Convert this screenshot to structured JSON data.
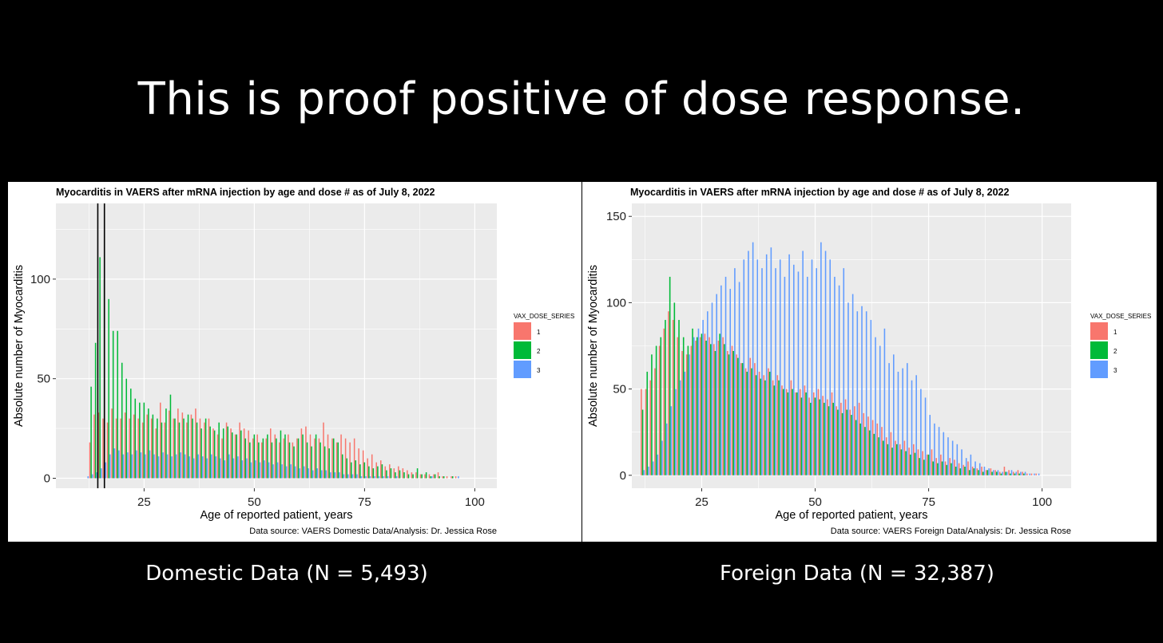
{
  "slide": {
    "title": "This is proof positive of dose response.",
    "captions": [
      "Domestic Data (N = 5,493)",
      "Foreign Data (N = 32,387)"
    ]
  },
  "colors": {
    "dose1": "#F8766D",
    "dose2": "#00BA38",
    "dose3": "#619CFF",
    "panel_bg": "#EBEBEB"
  },
  "chart_data": [
    {
      "type": "bar",
      "title": "Myocarditis in VAERS after mRNA injection by age and dose # as of July 8, 2022",
      "xlabel": "Age of reported patient, years",
      "ylabel": "Absolute number of Myocarditis",
      "source": "Data source: VAERS Domestic Data/Analysis: Dr. Jessica Rose",
      "xlim": [
        5,
        105
      ],
      "ylim": [
        -5,
        138
      ],
      "x_ticks": [
        25,
        50,
        75,
        100
      ],
      "y_ticks": [
        0,
        50,
        100
      ],
      "grid": true,
      "legend": {
        "title": "VAX_DOSE_SERIES",
        "placement": "right",
        "entries": [
          "1",
          "2",
          "3"
        ]
      },
      "reference_lines_x": [
        14.5,
        16
      ],
      "x": [
        12,
        13,
        14,
        15,
        16,
        17,
        18,
        19,
        20,
        21,
        22,
        23,
        24,
        25,
        26,
        27,
        28,
        29,
        30,
        31,
        32,
        33,
        34,
        35,
        36,
        37,
        38,
        39,
        40,
        41,
        42,
        43,
        44,
        45,
        46,
        47,
        48,
        49,
        50,
        51,
        52,
        53,
        54,
        55,
        56,
        57,
        58,
        59,
        60,
        61,
        62,
        63,
        64,
        65,
        66,
        67,
        68,
        69,
        70,
        71,
        72,
        73,
        74,
        75,
        76,
        77,
        78,
        79,
        80,
        81,
        82,
        83,
        84,
        85,
        86,
        87,
        88,
        89,
        90,
        91,
        92,
        93,
        94,
        95,
        96,
        97,
        98,
        99,
        100
      ],
      "series": [
        {
          "name": "1",
          "values": [
            0,
            18,
            32,
            33,
            30,
            28,
            35,
            30,
            30,
            33,
            30,
            32,
            30,
            28,
            32,
            30,
            25,
            38,
            28,
            34,
            30,
            35,
            33,
            28,
            32,
            35,
            30,
            28,
            30,
            25,
            22,
            20,
            28,
            25,
            22,
            28,
            25,
            24,
            20,
            22,
            18,
            20,
            25,
            22,
            18,
            20,
            22,
            18,
            20,
            25,
            26,
            22,
            20,
            20,
            28,
            22,
            20,
            18,
            22,
            20,
            18,
            20,
            15,
            14,
            10,
            12,
            8,
            9,
            6,
            7,
            5,
            6,
            5,
            4,
            3,
            3,
            2,
            2,
            2,
            2,
            3,
            1,
            1,
            1,
            1,
            0,
            0,
            0,
            0
          ]
        },
        {
          "name": "2",
          "values": [
            0,
            46,
            68,
            111,
            100,
            90,
            74,
            74,
            58,
            50,
            45,
            40,
            38,
            38,
            35,
            32,
            30,
            28,
            35,
            42,
            30,
            28,
            30,
            32,
            30,
            28,
            25,
            30,
            26,
            24,
            28,
            25,
            26,
            23,
            22,
            24,
            20,
            18,
            22,
            18,
            20,
            22,
            18,
            20,
            24,
            22,
            18,
            16,
            20,
            22,
            18,
            16,
            22,
            18,
            16,
            15,
            20,
            18,
            12,
            10,
            8,
            9,
            7,
            8,
            6,
            5,
            6,
            7,
            4,
            5,
            3,
            4,
            3,
            2,
            2,
            5,
            2,
            3,
            1,
            2,
            1,
            1,
            0,
            1,
            0,
            0,
            0,
            0,
            0
          ]
        },
        {
          "name": "3",
          "values": [
            1,
            2,
            3,
            5,
            8,
            12,
            15,
            14,
            12,
            13,
            12,
            14,
            13,
            12,
            14,
            12,
            11,
            13,
            12,
            11,
            12,
            13,
            12,
            11,
            10,
            12,
            11,
            10,
            12,
            11,
            10,
            9,
            12,
            10,
            11,
            9,
            10,
            8,
            9,
            8,
            9,
            8,
            7,
            8,
            7,
            6,
            7,
            6,
            5,
            6,
            5,
            4,
            5,
            4,
            4,
            3,
            3,
            3,
            2,
            2,
            2,
            2,
            1,
            1,
            1,
            1,
            1,
            1,
            1,
            0,
            1,
            0,
            0,
            0,
            0,
            0,
            0,
            0,
            1,
            0,
            0,
            0,
            0,
            0,
            1,
            0,
            0,
            0,
            0
          ]
        }
      ]
    },
    {
      "type": "bar",
      "title": "Myocarditis in VAERS after mRNA injection by age and dose # as of July 8, 2022",
      "xlabel": "Age of reported patient, years",
      "ylabel": "Absolute number of Myocarditis",
      "source": "Data source: VAERS Foreign Data/Analysis: Dr. Jessica Rose",
      "xlim": [
        9.6,
        106.4
      ],
      "ylim": [
        -7.5,
        157.5
      ],
      "x_ticks": [
        25,
        50,
        75,
        100
      ],
      "y_ticks": [
        0,
        50,
        100,
        150
      ],
      "grid": true,
      "legend": {
        "title": "VAX_DOSE_SERIES",
        "placement": "right",
        "entries": [
          "1",
          "2",
          "3"
        ]
      },
      "x": [
        12,
        13,
        14,
        15,
        16,
        17,
        18,
        19,
        20,
        21,
        22,
        23,
        24,
        25,
        26,
        27,
        28,
        29,
        30,
        31,
        32,
        33,
        34,
        35,
        36,
        37,
        38,
        39,
        40,
        41,
        42,
        43,
        44,
        45,
        46,
        47,
        48,
        49,
        50,
        51,
        52,
        53,
        54,
        55,
        56,
        57,
        58,
        59,
        60,
        61,
        62,
        63,
        64,
        65,
        66,
        67,
        68,
        69,
        70,
        71,
        72,
        73,
        74,
        75,
        76,
        77,
        78,
        79,
        80,
        81,
        82,
        83,
        84,
        85,
        86,
        87,
        88,
        89,
        90,
        91,
        92,
        93,
        94,
        95,
        96,
        97,
        98,
        99
      ],
      "series": [
        {
          "name": "1",
          "values": [
            50,
            50,
            55,
            62,
            75,
            85,
            95,
            90,
            80,
            72,
            70,
            75,
            78,
            80,
            82,
            80,
            76,
            78,
            80,
            72,
            75,
            70,
            65,
            62,
            68,
            65,
            60,
            58,
            62,
            55,
            58,
            52,
            50,
            55,
            48,
            50,
            52,
            45,
            48,
            50,
            46,
            44,
            48,
            40,
            42,
            44,
            38,
            40,
            42,
            36,
            34,
            32,
            30,
            28,
            22,
            25,
            20,
            18,
            20,
            16,
            18,
            15,
            14,
            12,
            15,
            10,
            12,
            8,
            10,
            9,
            7,
            6,
            8,
            5,
            4,
            5,
            3,
            4,
            3,
            2,
            5,
            3,
            2,
            3,
            2,
            1,
            1,
            1
          ]
        },
        {
          "name": "2",
          "values": [
            38,
            60,
            70,
            75,
            80,
            90,
            115,
            100,
            90,
            80,
            75,
            85,
            80,
            82,
            78,
            76,
            72,
            82,
            76,
            70,
            72,
            68,
            65,
            60,
            62,
            58,
            56,
            55,
            60,
            52,
            55,
            50,
            48,
            50,
            48,
            45,
            48,
            42,
            45,
            44,
            42,
            40,
            42,
            38,
            36,
            38,
            35,
            32,
            30,
            28,
            26,
            24,
            22,
            20,
            18,
            16,
            18,
            15,
            14,
            12,
            13,
            10,
            9,
            12,
            8,
            7,
            8,
            6,
            7,
            5,
            4,
            5,
            3,
            4,
            3,
            2,
            3,
            2,
            2,
            1,
            2,
            1,
            1,
            1,
            1,
            0,
            0,
            0
          ]
        },
        {
          "name": "3",
          "values": [
            3,
            5,
            8,
            12,
            20,
            30,
            40,
            50,
            55,
            60,
            70,
            80,
            85,
            90,
            95,
            100,
            105,
            110,
            115,
            108,
            120,
            112,
            125,
            130,
            135,
            125,
            120,
            128,
            132,
            120,
            125,
            115,
            128,
            122,
            118,
            130,
            115,
            125,
            120,
            135,
            130,
            125,
            115,
            110,
            120,
            100,
            105,
            95,
            98,
            95,
            90,
            80,
            75,
            85,
            65,
            70,
            60,
            62,
            65,
            55,
            58,
            50,
            45,
            35,
            30,
            28,
            25,
            22,
            20,
            18,
            15,
            10,
            12,
            8,
            7,
            5,
            4,
            3,
            3,
            2,
            2,
            3,
            2,
            2,
            2,
            1,
            1,
            1
          ]
        }
      ]
    }
  ]
}
